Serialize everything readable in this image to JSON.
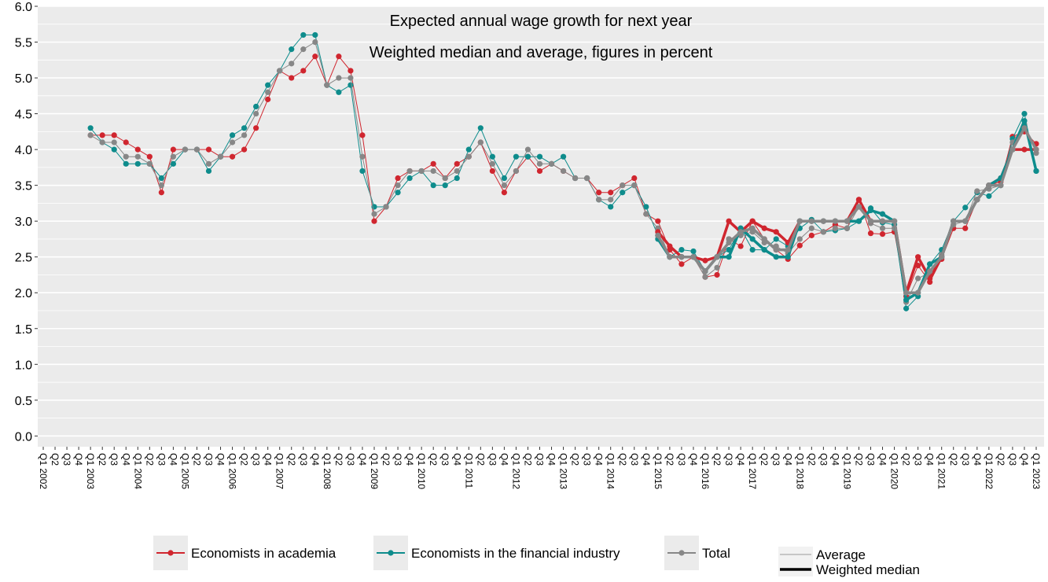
{
  "chart_data": {
    "type": "line",
    "title": "Expected annual wage growth for next year",
    "subtitle": "Weighted median and average, figures in percent",
    "categories": [
      "Q1 2002",
      "Q2",
      "Q3",
      "Q4",
      "Q1 2003",
      "Q2",
      "Q3",
      "Q4",
      "Q1 2004",
      "Q2",
      "Q3",
      "Q4",
      "Q1 2005",
      "Q2",
      "Q3",
      "Q4",
      "Q1 2006",
      "Q2",
      "Q3",
      "Q4",
      "Q1 2007",
      "Q2",
      "Q3",
      "Q4",
      "Q1 2008",
      "Q2",
      "Q3",
      "Q4",
      "Q1 2009",
      "Q2",
      "Q3",
      "Q4",
      "Q1 2010",
      "Q2",
      "Q3",
      "Q4",
      "Q1 2011",
      "Q2",
      "Q3",
      "Q4",
      "Q1 2012",
      "Q2",
      "Q3",
      "Q4",
      "Q1 2013",
      "Q2",
      "Q3",
      "Q4",
      "Q1 2014",
      "Q2",
      "Q3",
      "Q4",
      "Q1 2015",
      "Q2",
      "Q3",
      "Q4",
      "Q1 2016",
      "Q2",
      "Q3",
      "Q4",
      "Q1 2017",
      "Q2",
      "Q3",
      "Q4",
      "Q1 2018",
      "Q2",
      "Q3",
      "Q4",
      "Q1 2019",
      "Q2",
      "Q3",
      "Q4",
      "Q1 2020",
      "Q2",
      "Q3",
      "Q4",
      "Q1 2021",
      "Q2",
      "Q3",
      "Q4",
      "Q1 2022",
      "Q2",
      "Q3",
      "Q4",
      "Q1 2023"
    ],
    "ylim": [
      -0.15,
      6.0
    ],
    "yticks": [
      {
        "value": 0,
        "label": "0.0"
      },
      0.5,
      {
        "value": 1,
        "label": "1.0"
      },
      1.5,
      {
        "value": 2,
        "label": "2.0"
      },
      2.5,
      {
        "value": 3,
        "label": "3.0"
      },
      3.5,
      {
        "value": 4,
        "label": "4.0"
      },
      4.5,
      {
        "value": 5,
        "label": "5.0"
      },
      5.5,
      {
        "value": 6,
        "label": "6.0"
      }
    ],
    "grid": true,
    "background": "#ebebeb",
    "line_styles": {
      "average": {
        "label": "Average",
        "width": 1
      },
      "weighted_median": {
        "label": "Weighted median",
        "width": 3.5
      }
    },
    "series": [
      {
        "name": "Economists in academia",
        "color": "#d0262f",
        "average": [
          null,
          null,
          null,
          null,
          4.2,
          4.2,
          4.2,
          4.1,
          4.0,
          3.9,
          3.4,
          4.0,
          4.0,
          4.0,
          4.0,
          3.9,
          3.9,
          4.0,
          4.3,
          4.7,
          5.1,
          5.0,
          5.1,
          5.3,
          4.9,
          5.3,
          5.1,
          4.2,
          3.0,
          3.2,
          3.6,
          3.7,
          3.7,
          3.8,
          3.6,
          3.8,
          3.9,
          4.1,
          3.7,
          3.4,
          3.7,
          3.9,
          3.7,
          3.8,
          3.7,
          3.6,
          3.6,
          3.4,
          3.4,
          3.5,
          3.6,
          3.1,
          3.0,
          2.6,
          2.4,
          2.5,
          2.22,
          2.25,
          2.75,
          2.65,
          3.0,
          2.75,
          2.6,
          2.47,
          2.66,
          2.8,
          2.85,
          2.95,
          2.9,
          3.3,
          2.83,
          2.82,
          2.85,
          1.95,
          2.38,
          2.15,
          2.47,
          2.9,
          2.9,
          3.3,
          3.5,
          3.55,
          4.18,
          4.25,
          4.08
        ],
        "weighted_median": [
          null,
          null,
          null,
          null,
          null,
          null,
          null,
          null,
          null,
          null,
          null,
          null,
          null,
          null,
          null,
          null,
          null,
          null,
          null,
          null,
          null,
          null,
          null,
          null,
          null,
          null,
          null,
          null,
          null,
          null,
          null,
          null,
          null,
          null,
          null,
          null,
          null,
          null,
          null,
          null,
          null,
          null,
          null,
          null,
          null,
          null,
          null,
          null,
          null,
          null,
          null,
          null,
          2.85,
          2.65,
          2.5,
          2.5,
          2.45,
          2.5,
          3.0,
          2.85,
          3.0,
          2.9,
          2.85,
          2.7,
          3.0,
          3.0,
          3.0,
          3.0,
          3.0,
          3.3,
          3.0,
          3.0,
          3.0,
          2.0,
          2.5,
          2.2,
          2.5,
          3.0,
          3.0,
          3.3,
          3.5,
          3.6,
          4.0,
          4.0,
          4.0
        ]
      },
      {
        "name": "Economists in the financial industry",
        "color": "#0e8c8c",
        "average": [
          null,
          null,
          null,
          null,
          4.3,
          4.1,
          4.0,
          3.8,
          3.8,
          3.8,
          3.6,
          3.8,
          4.0,
          4.0,
          3.7,
          3.9,
          4.2,
          4.3,
          4.6,
          4.9,
          5.1,
          5.4,
          5.6,
          5.6,
          4.9,
          4.8,
          4.9,
          3.7,
          3.2,
          3.2,
          3.4,
          3.6,
          3.7,
          3.5,
          3.5,
          3.6,
          4.0,
          4.3,
          3.9,
          3.6,
          3.9,
          3.9,
          3.9,
          3.8,
          3.9,
          3.6,
          3.6,
          3.3,
          3.2,
          3.4,
          3.5,
          3.2,
          2.8,
          2.5,
          2.6,
          2.58,
          2.3,
          2.5,
          2.6,
          2.9,
          2.6,
          2.6,
          2.75,
          2.65,
          2.9,
          3.02,
          2.85,
          2.87,
          2.9,
          3.0,
          3.18,
          2.98,
          2.95,
          1.78,
          1.95,
          2.4,
          2.6,
          3.0,
          3.19,
          3.4,
          3.35,
          3.5,
          4.15,
          4.5,
          3.7
        ],
        "weighted_median": [
          null,
          null,
          null,
          null,
          null,
          null,
          null,
          null,
          null,
          null,
          null,
          null,
          null,
          null,
          null,
          null,
          null,
          null,
          null,
          null,
          null,
          null,
          null,
          null,
          null,
          null,
          null,
          null,
          null,
          null,
          null,
          null,
          null,
          null,
          null,
          null,
          null,
          null,
          null,
          null,
          null,
          null,
          null,
          null,
          null,
          null,
          null,
          null,
          null,
          null,
          null,
          null,
          2.75,
          2.5,
          2.5,
          2.5,
          2.3,
          2.5,
          2.5,
          2.9,
          2.75,
          2.6,
          2.5,
          2.5,
          3.0,
          3.0,
          3.0,
          3.0,
          3.0,
          3.0,
          3.15,
          3.1,
          3.0,
          1.9,
          2.0,
          2.4,
          2.5,
          3.0,
          3.0,
          3.3,
          3.5,
          3.6,
          4.0,
          4.4,
          3.7
        ]
      },
      {
        "name": "Total",
        "color": "#878787",
        "average": [
          null,
          null,
          null,
          null,
          4.2,
          4.1,
          4.1,
          3.9,
          3.9,
          3.8,
          3.5,
          3.9,
          4.0,
          4.0,
          3.8,
          3.9,
          4.1,
          4.2,
          4.5,
          4.8,
          5.1,
          5.2,
          5.4,
          5.5,
          4.9,
          5.0,
          5.0,
          3.9,
          3.1,
          3.2,
          3.5,
          3.7,
          3.7,
          3.7,
          3.6,
          3.7,
          3.9,
          4.1,
          3.8,
          3.5,
          3.7,
          4.0,
          3.8,
          3.8,
          3.7,
          3.6,
          3.6,
          3.3,
          3.3,
          3.5,
          3.5,
          3.1,
          2.9,
          2.5,
          2.5,
          2.5,
          2.22,
          2.35,
          2.75,
          2.8,
          2.85,
          2.7,
          2.65,
          2.55,
          2.75,
          2.9,
          2.85,
          2.9,
          2.9,
          3.2,
          2.97,
          2.9,
          2.9,
          1.87,
          2.2,
          2.28,
          2.53,
          2.95,
          3.0,
          3.42,
          3.45,
          3.5,
          4.1,
          4.35,
          3.95
        ],
        "weighted_median": [
          null,
          null,
          null,
          null,
          null,
          null,
          null,
          null,
          null,
          null,
          null,
          null,
          null,
          null,
          null,
          null,
          null,
          null,
          null,
          null,
          null,
          null,
          null,
          null,
          null,
          null,
          null,
          null,
          null,
          null,
          null,
          null,
          null,
          null,
          null,
          null,
          null,
          null,
          null,
          null,
          null,
          null,
          null,
          null,
          null,
          null,
          null,
          null,
          null,
          null,
          null,
          null,
          2.8,
          2.5,
          2.5,
          2.5,
          2.3,
          2.5,
          2.7,
          2.85,
          2.9,
          2.75,
          2.6,
          2.6,
          3.0,
          3.0,
          3.0,
          3.0,
          3.0,
          3.2,
          3.0,
          3.0,
          3.0,
          2.0,
          2.0,
          2.3,
          2.5,
          3.0,
          3.0,
          3.3,
          3.5,
          3.5,
          4.0,
          4.3,
          4.0
        ]
      }
    ]
  }
}
